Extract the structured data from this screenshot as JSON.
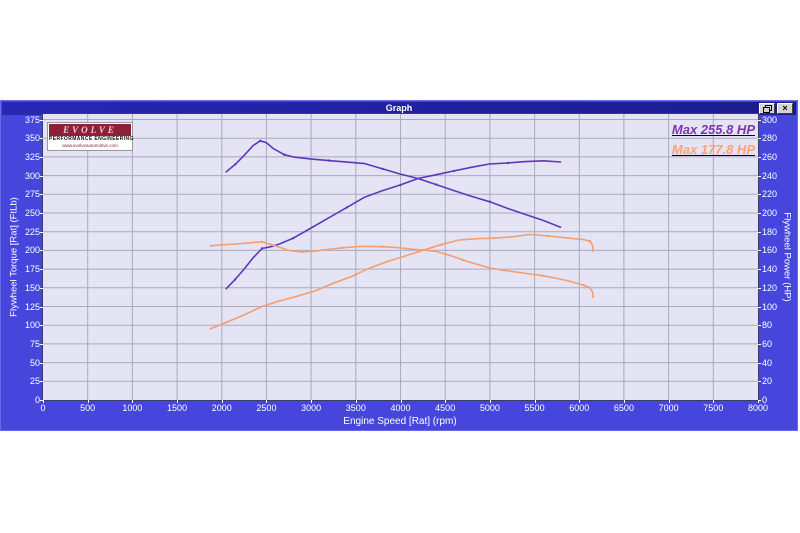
{
  "window": {
    "title": "Graph"
  },
  "brand": {
    "name": "EVOLVE",
    "line2": "PERFORMANCE ENGINEERING",
    "line3": "www.evolveautomotive.com"
  },
  "legend": [
    {
      "label": "Max 255.8 HP",
      "color": "#7a36b1"
    },
    {
      "label": "Max 177.8 HP",
      "color": "#ffa172"
    }
  ],
  "colors": {
    "window_body": "#4646dd",
    "titlebar": "#2222a8",
    "plot_background": "#e4e4f4",
    "gridline": "#a9a9c0",
    "purple_curve": "#5e38ba",
    "orange_curve": "#f59e70",
    "tick_text": "#ffffff",
    "logo_maroon": "#8e2038"
  },
  "chart_data": {
    "type": "line",
    "title": "Graph",
    "xlabel": "Engine Speed [Rat] (rpm)",
    "ylabel_left": "Flywheel Torque [Rat] (FtLb)",
    "ylabel_right": "Flywheel Power (HP)",
    "x_range": [
      0,
      8000
    ],
    "x_tick_step": 500,
    "x_ticks": [
      0,
      500,
      1000,
      1500,
      2000,
      2500,
      3000,
      3500,
      4000,
      4500,
      5000,
      5500,
      6000,
      6500,
      7000,
      7500,
      8000
    ],
    "y_left_range": [
      0,
      375
    ],
    "y_left_tick_step": 25,
    "y_left_ticks": [
      0,
      25,
      50,
      75,
      100,
      125,
      150,
      175,
      200,
      225,
      250,
      275,
      300,
      325,
      350,
      375
    ],
    "y_right_range": [
      0,
      300
    ],
    "y_right_tick_step": 20,
    "y_right_ticks": [
      0,
      20,
      40,
      60,
      80,
      100,
      120,
      140,
      160,
      180,
      200,
      220,
      240,
      260,
      280,
      300
    ],
    "grid": true,
    "legend_position": "top-right",
    "series": [
      {
        "name": "run1-torque",
        "axis": "left",
        "color": "#5e38ba",
        "points": [
          [
            2050,
            305
          ],
          [
            2150,
            315
          ],
          [
            2250,
            327
          ],
          [
            2350,
            340
          ],
          [
            2430,
            346.5
          ],
          [
            2500,
            344
          ],
          [
            2580,
            336
          ],
          [
            2700,
            328
          ],
          [
            2800,
            325
          ],
          [
            3000,
            322
          ],
          [
            3200,
            320
          ],
          [
            3400,
            318
          ],
          [
            3600,
            316
          ],
          [
            3800,
            309
          ],
          [
            4000,
            302
          ],
          [
            4200,
            296
          ],
          [
            4400,
            288
          ],
          [
            4600,
            280
          ],
          [
            4800,
            272
          ],
          [
            5000,
            265
          ],
          [
            5200,
            256
          ],
          [
            5400,
            248
          ],
          [
            5600,
            240
          ],
          [
            5790,
            231
          ]
        ]
      },
      {
        "name": "run1-power",
        "axis": "right",
        "color": "#5e38ba",
        "max_label": "Max 255.8 HP",
        "points": [
          [
            2050,
            119
          ],
          [
            2150,
            129
          ],
          [
            2250,
            140
          ],
          [
            2350,
            152
          ],
          [
            2450,
            162
          ],
          [
            2550,
            164
          ],
          [
            2650,
            167
          ],
          [
            2800,
            173
          ],
          [
            3000,
            184
          ],
          [
            3200,
            195
          ],
          [
            3400,
            206
          ],
          [
            3600,
            217
          ],
          [
            3800,
            224
          ],
          [
            4000,
            230
          ],
          [
            4200,
            237
          ],
          [
            4400,
            241
          ],
          [
            4600,
            245
          ],
          [
            4800,
            249
          ],
          [
            5000,
            252.5
          ],
          [
            5200,
            253.5
          ],
          [
            5400,
            255
          ],
          [
            5600,
            255.8
          ],
          [
            5790,
            254.5
          ]
        ]
      },
      {
        "name": "run2-torque",
        "axis": "left",
        "color": "#f59e70",
        "points": [
          [
            1870,
            206
          ],
          [
            2000,
            207.5
          ],
          [
            2150,
            208.5
          ],
          [
            2300,
            210
          ],
          [
            2450,
            211.5
          ],
          [
            2600,
            206
          ],
          [
            2750,
            200
          ],
          [
            2900,
            198
          ],
          [
            3050,
            199
          ],
          [
            3200,
            201.5
          ],
          [
            3350,
            203.5
          ],
          [
            3500,
            205
          ],
          [
            3650,
            205.5
          ],
          [
            3800,
            205
          ],
          [
            3950,
            204
          ],
          [
            4100,
            202
          ],
          [
            4250,
            200.5
          ],
          [
            4400,
            198.5
          ],
          [
            4550,
            193.5
          ],
          [
            4700,
            187
          ],
          [
            4850,
            181.5
          ],
          [
            5000,
            176.5
          ],
          [
            5150,
            173.5
          ],
          [
            5300,
            171
          ],
          [
            5450,
            168.5
          ],
          [
            5600,
            166
          ],
          [
            5750,
            162.5
          ],
          [
            5900,
            158.5
          ],
          [
            6050,
            153.5
          ],
          [
            6120,
            150
          ],
          [
            6150,
            144
          ],
          [
            6155,
            137
          ]
        ]
      },
      {
        "name": "run2-power",
        "axis": "right",
        "color": "#f59e70",
        "max_label": "Max 177.8 HP",
        "points": [
          [
            1870,
            76
          ],
          [
            2050,
            83
          ],
          [
            2250,
            91
          ],
          [
            2450,
            100
          ],
          [
            2650,
            106
          ],
          [
            2850,
            111
          ],
          [
            3050,
            117
          ],
          [
            3250,
            125
          ],
          [
            3450,
            132
          ],
          [
            3650,
            141
          ],
          [
            3850,
            148
          ],
          [
            4050,
            154
          ],
          [
            4250,
            160
          ],
          [
            4450,
            166
          ],
          [
            4650,
            171
          ],
          [
            4850,
            172.5
          ],
          [
            5050,
            173
          ],
          [
            5250,
            174.5
          ],
          [
            5450,
            177
          ],
          [
            5650,
            175.5
          ],
          [
            5850,
            173.5
          ],
          [
            6050,
            171.5
          ],
          [
            6120,
            170
          ],
          [
            6150,
            165
          ],
          [
            6155,
            159
          ]
        ]
      }
    ]
  }
}
